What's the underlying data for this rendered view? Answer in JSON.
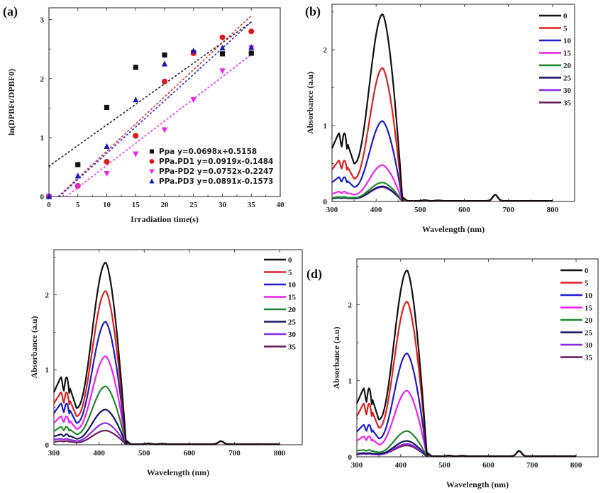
{
  "figure": {
    "panels": [
      "(a)",
      "(b)",
      "",
      "(d)"
    ]
  },
  "chart_data": [
    {
      "id": "a",
      "type": "scatter",
      "panel_label": "(a)",
      "title": "",
      "xlabel": "Irradiation time(s)",
      "ylabel": "ln(DPBFt/DPBF0)",
      "xlim": [
        0,
        40
      ],
      "ylim": [
        0,
        3.2
      ],
      "xticks": [
        0,
        5,
        10,
        15,
        20,
        25,
        30,
        35,
        40
      ],
      "yticks": [
        0,
        1,
        2,
        3
      ],
      "legend_position": "bottom-right",
      "series": [
        {
          "name": "Ppa",
          "fit_label": "Ppa y=0.0698x+0.5158",
          "marker": "square",
          "color": "#111111",
          "x": [
            0,
            5,
            10,
            15,
            20,
            25,
            30,
            35
          ],
          "y": [
            0,
            0.54,
            1.51,
            2.19,
            2.4,
            2.44,
            2.42,
            2.43
          ],
          "fit": {
            "slope": 0.0698,
            "intercept": 0.5158
          }
        },
        {
          "name": "PPa.PD1",
          "fit_label": "PPa.PD1 y=0.0919x-0.1484",
          "marker": "circle",
          "color": "#e01818",
          "x": [
            0,
            5,
            10,
            15,
            20,
            25,
            30,
            35
          ],
          "y": [
            0,
            0.18,
            0.59,
            1.03,
            1.95,
            2.43,
            2.7,
            2.8
          ],
          "fit": {
            "slope": 0.0919,
            "intercept": -0.1484
          }
        },
        {
          "name": "PPa-PD2",
          "fit_label": "PPa-PD2 y=0.0752x-0.2247",
          "marker": "triangle-down",
          "color": "#ee22ee",
          "x": [
            0,
            5,
            10,
            15,
            20,
            25,
            30,
            35
          ],
          "y": [
            0,
            0.17,
            0.39,
            0.72,
            1.13,
            1.64,
            2.13,
            2.52
          ],
          "fit": {
            "slope": 0.0752,
            "intercept": -0.2247
          }
        },
        {
          "name": "PPa.PD3",
          "fit_label": "PPa.PD3 y=0.0891x-0.1573",
          "marker": "triangle-up",
          "color": "#1a1ab8",
          "x": [
            0,
            5,
            10,
            15,
            20,
            25,
            30,
            35
          ],
          "y": [
            0,
            0.35,
            0.85,
            1.64,
            2.25,
            2.47,
            2.52,
            2.53
          ],
          "fit": {
            "slope": 0.0891,
            "intercept": -0.1573
          }
        }
      ]
    },
    {
      "id": "b",
      "type": "line",
      "panel_label": "(b)",
      "xlabel": "Wavelength (nm)",
      "ylabel": "Absorbance (a.u)",
      "xlim": [
        300,
        850
      ],
      "ylim": [
        0,
        2.6
      ],
      "xticks": [
        300,
        400,
        500,
        600,
        700,
        800
      ],
      "yticks": [
        0,
        1,
        2
      ],
      "legend_position": "top-right",
      "series": [
        {
          "name": "0",
          "color": "#111111",
          "soret_peak": 2.47,
          "q_band": 0.9,
          "trough": 0.5,
          "start": 0.7
        },
        {
          "name": "5",
          "color": "#e02020",
          "soret_peak": 1.76,
          "q_band": 0.54,
          "trough": 0.3,
          "start": 0.42
        },
        {
          "name": "10",
          "color": "#1c1ccc",
          "soret_peak": 1.06,
          "q_band": 0.32,
          "trough": 0.19,
          "start": 0.25
        },
        {
          "name": "15",
          "color": "#ee22ee",
          "soret_peak": 0.48,
          "q_band": 0.13,
          "trough": 0.09,
          "start": 0.1
        },
        {
          "name": "20",
          "color": "#1f8a2a",
          "soret_peak": 0.25,
          "q_band": 0.06,
          "trough": 0.05,
          "start": 0.05
        },
        {
          "name": "25",
          "color": "#151560",
          "soret_peak": 0.2,
          "q_band": 0.05,
          "trough": 0.04,
          "start": 0.04
        },
        {
          "name": "30",
          "color": "#8a2be2",
          "soret_peak": 0.19,
          "q_band": 0.05,
          "trough": 0.04,
          "start": 0.04
        },
        {
          "name": "35",
          "color": "#6a1a5e",
          "soret_peak": 0.19,
          "q_band": 0.05,
          "trough": 0.04,
          "start": 0.04
        }
      ],
      "shared_features": {
        "soret_nm": 415,
        "q_band_nm": [
          315,
          328
        ],
        "cutoff_nm": 460,
        "minor_peak_nm": 670,
        "minor_peak_abs": 0.08
      }
    },
    {
      "id": "c",
      "type": "line",
      "panel_label": "",
      "xlabel": "Wavelength (nm)",
      "ylabel": "Absorbance (a.u)",
      "xlim": [
        300,
        850
      ],
      "ylim": [
        0,
        2.6
      ],
      "xticks": [
        300,
        400,
        500,
        600,
        700,
        800
      ],
      "yticks": [
        0,
        1,
        2
      ],
      "legend_position": "top-right",
      "series": [
        {
          "name": "0",
          "color": "#111111",
          "soret_peak": 2.43,
          "q_band": 0.9,
          "trough": 0.49,
          "start": 0.7
        },
        {
          "name": "5",
          "color": "#e02020",
          "soret_peak": 2.05,
          "q_band": 0.7,
          "trough": 0.38,
          "start": 0.55
        },
        {
          "name": "10",
          "color": "#1c1ccc",
          "soret_peak": 1.64,
          "q_band": 0.55,
          "trough": 0.29,
          "start": 0.42
        },
        {
          "name": "15",
          "color": "#ee22ee",
          "soret_peak": 1.18,
          "q_band": 0.38,
          "trough": 0.21,
          "start": 0.29
        },
        {
          "name": "20",
          "color": "#1f8a2a",
          "soret_peak": 0.78,
          "q_band": 0.24,
          "trough": 0.14,
          "start": 0.18
        },
        {
          "name": "25",
          "color": "#151560",
          "soret_peak": 0.47,
          "q_band": 0.14,
          "trough": 0.08,
          "start": 0.11
        },
        {
          "name": "30",
          "color": "#8a2be2",
          "soret_peak": 0.29,
          "q_band": 0.08,
          "trough": 0.05,
          "start": 0.07
        },
        {
          "name": "35",
          "color": "#6a1a5e",
          "soret_peak": 0.19,
          "q_band": 0.05,
          "trough": 0.03,
          "start": 0.04
        }
      ],
      "shared_features": {
        "soret_nm": 415,
        "q_band_nm": [
          315,
          328
        ],
        "cutoff_nm": 460,
        "minor_peak_nm": 670,
        "minor_peak_abs": 0.04
      }
    },
    {
      "id": "d",
      "type": "line",
      "panel_label": "(d)",
      "xlabel": "Wavelength (nm)",
      "ylabel": "Absorbance (a.u)",
      "xlim": [
        300,
        850
      ],
      "ylim": [
        0,
        2.6
      ],
      "xticks": [
        300,
        400,
        500,
        600,
        700,
        800
      ],
      "yticks": [
        0,
        1,
        2
      ],
      "legend_position": "top-right",
      "series": [
        {
          "name": "0",
          "color": "#111111",
          "soret_peak": 2.45,
          "q_band": 0.9,
          "trough": 0.49,
          "start": 0.7
        },
        {
          "name": "5",
          "color": "#e02020",
          "soret_peak": 2.04,
          "q_band": 0.7,
          "trough": 0.38,
          "start": 0.53
        },
        {
          "name": "10",
          "color": "#1c1ccc",
          "soret_peak": 1.36,
          "q_band": 0.42,
          "trough": 0.24,
          "start": 0.33
        },
        {
          "name": "15",
          "color": "#ee22ee",
          "soret_peak": 0.87,
          "q_band": 0.27,
          "trough": 0.16,
          "start": 0.21
        },
        {
          "name": "20",
          "color": "#1f8a2a",
          "soret_peak": 0.34,
          "q_band": 0.09,
          "trough": 0.06,
          "start": 0.08
        },
        {
          "name": "25",
          "color": "#151560",
          "soret_peak": 0.21,
          "q_band": 0.05,
          "trough": 0.04,
          "start": 0.04
        },
        {
          "name": "30",
          "color": "#8a2be2",
          "soret_peak": 0.17,
          "q_band": 0.04,
          "trough": 0.03,
          "start": 0.03
        },
        {
          "name": "35",
          "color": "#6a1a5e",
          "soret_peak": 0.15,
          "q_band": 0.04,
          "trough": 0.03,
          "start": 0.03
        }
      ],
      "shared_features": {
        "soret_nm": 415,
        "q_band_nm": [
          315,
          328
        ],
        "cutoff_nm": 460,
        "minor_peak_nm": 670,
        "minor_peak_abs": 0.07
      }
    }
  ]
}
